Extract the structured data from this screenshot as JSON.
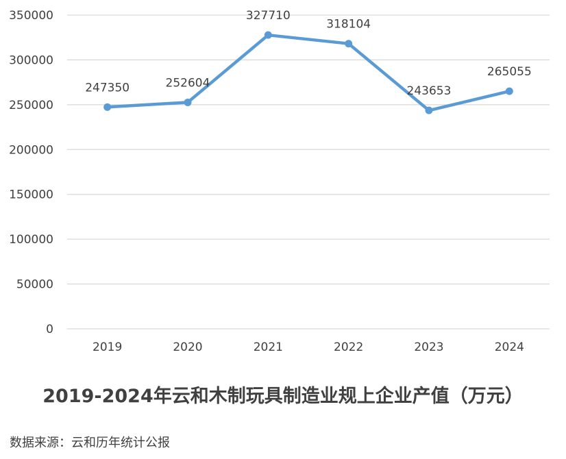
{
  "title": "2019-2024年云和木制玩具制造业规上企业产值（万元）",
  "source": "数据来源：云和历年统计公报",
  "colors": {
    "series": "#5b9bd5",
    "grid": "#d9d9d9",
    "text": "#404040"
  },
  "chart_data": {
    "type": "line",
    "categories": [
      "2019",
      "2020",
      "2021",
      "2022",
      "2023",
      "2024"
    ],
    "values": [
      247350,
      252604,
      327710,
      318104,
      243653,
      265055
    ],
    "data_labels": [
      "247350",
      "252604",
      "327710",
      "318104",
      "243653",
      "265055"
    ],
    "yticks": [
      "0",
      "50000",
      "100000",
      "150000",
      "200000",
      "250000",
      "300000",
      "350000"
    ],
    "ylim": [
      0,
      350000
    ],
    "grid": true,
    "legend": "none",
    "markers": true
  }
}
